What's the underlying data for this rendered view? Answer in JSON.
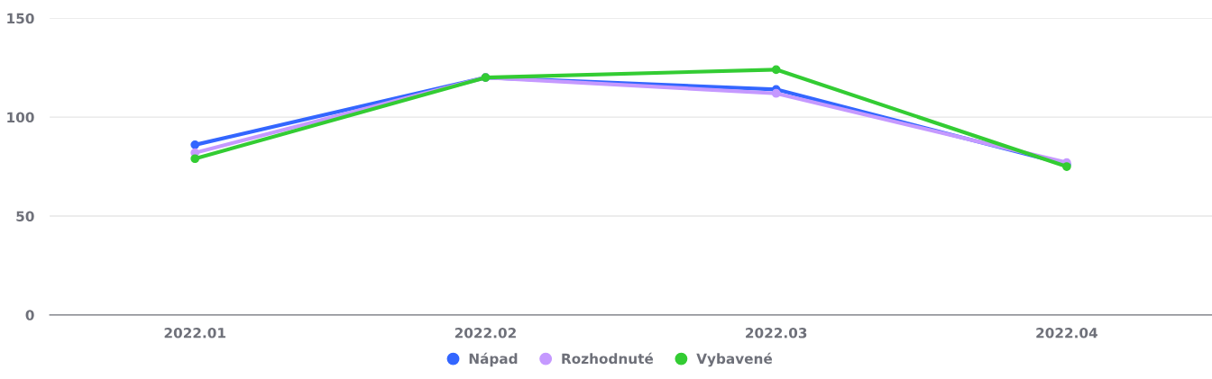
{
  "chart_data": {
    "type": "line",
    "categories": [
      "2022.01",
      "2022.02",
      "2022.03",
      "2022.04"
    ],
    "series": [
      {
        "name": "Nápad",
        "color": "#3366ff",
        "values": [
          86,
          120,
          114,
          76
        ]
      },
      {
        "name": "Rozhodnuté",
        "color": "#c599ff",
        "values": [
          82,
          120,
          112,
          77
        ]
      },
      {
        "name": "Vybavené",
        "color": "#33cc33",
        "values": [
          79,
          120,
          124,
          75
        ]
      }
    ],
    "ylim": [
      0,
      150
    ],
    "yticks": [
      0,
      50,
      100,
      150
    ],
    "grid": "y",
    "legend": "bottom",
    "marker": "circle",
    "line_style": "solid"
  }
}
